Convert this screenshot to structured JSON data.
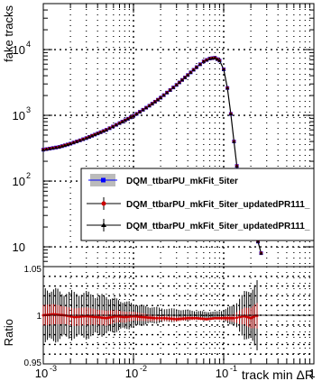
{
  "chart_data": [
    {
      "type": "scatter",
      "panel": "main",
      "xlabel": "",
      "ylabel": "fake tracks",
      "xscale": "log",
      "yscale": "log",
      "xlim": [
        0.001,
        1
      ],
      "ylim": [
        5,
        50000
      ],
      "grid": true,
      "legend_position": "center-right",
      "x_ticks": [
        "10",
        "10",
        "10"
      ],
      "x_tick_exps": [
        "-3",
        "-2",
        "-1"
      ],
      "x_tick_last": "1",
      "y_ticks": [
        "10",
        "10",
        "10",
        "10"
      ],
      "y_tick_exps": [
        "",
        "2",
        "3",
        "4"
      ],
      "series": [
        {
          "name": "DQM_ttbarPU_mkFit_5iter",
          "color": "#0000ff",
          "marker": "square",
          "x": [
            0.001,
            0.0015,
            0.002,
            0.003,
            0.005,
            0.007,
            0.01,
            0.015,
            0.02,
            0.03,
            0.04,
            0.05,
            0.06,
            0.07,
            0.08,
            0.09,
            0.1,
            0.11,
            0.12,
            0.13,
            0.14,
            0.15,
            0.16,
            0.18,
            0.2,
            0.22,
            0.24,
            0.26
          ],
          "y": [
            300,
            330,
            370,
            450,
            600,
            760,
            980,
            1400,
            1850,
            2900,
            4100,
            5400,
            6600,
            7300,
            7500,
            6800,
            5000,
            2600,
            1050,
            400,
            170,
            85,
            55,
            45,
            30,
            20,
            12,
            8
          ]
        },
        {
          "name": "DQM_ttbarPU_mkFit_5iter_updatedPR111_",
          "color": "#cc0000",
          "marker": "circle",
          "x": [
            0.001,
            0.0015,
            0.002,
            0.003,
            0.005,
            0.007,
            0.01,
            0.015,
            0.02,
            0.03,
            0.04,
            0.05,
            0.06,
            0.07,
            0.08,
            0.09,
            0.1,
            0.11,
            0.12,
            0.13,
            0.14,
            0.15,
            0.16,
            0.18,
            0.2,
            0.22,
            0.24,
            0.26
          ],
          "y": [
            300,
            330,
            370,
            450,
            600,
            760,
            980,
            1400,
            1850,
            2900,
            4100,
            5400,
            6600,
            7300,
            7500,
            6800,
            5000,
            2600,
            1050,
            400,
            170,
            85,
            55,
            45,
            30,
            20,
            12,
            8
          ]
        },
        {
          "name": "DQM_ttbarPU_mkFit_5iter_updatedPR111_",
          "color": "#000000",
          "marker": "triangle",
          "x": [
            0.001,
            0.0015,
            0.002,
            0.003,
            0.005,
            0.007,
            0.01,
            0.015,
            0.02,
            0.03,
            0.04,
            0.05,
            0.06,
            0.07,
            0.08,
            0.09,
            0.1,
            0.11,
            0.12,
            0.13,
            0.14,
            0.15,
            0.16,
            0.18,
            0.2,
            0.22,
            0.24,
            0.26
          ],
          "y": [
            300,
            330,
            370,
            450,
            600,
            760,
            980,
            1400,
            1850,
            2900,
            4100,
            5400,
            6600,
            7300,
            7500,
            6800,
            5000,
            2600,
            1050,
            400,
            170,
            85,
            55,
            45,
            30,
            20,
            12,
            8
          ]
        }
      ]
    },
    {
      "type": "scatter",
      "panel": "ratio",
      "xlabel": "track min ΔR",
      "ylabel": "Ratio",
      "xscale": "log",
      "xlim": [
        0.001,
        1
      ],
      "ylim": [
        0.95,
        1.05
      ],
      "grid": true,
      "y_ticks": [
        "0.95",
        "1",
        "1.05"
      ],
      "series": [
        {
          "name": "DQM_ttbarPU_mkFit_5iter_updatedPR111_",
          "color": "#cc0000",
          "x": [
            0.001,
            0.0013,
            0.0017,
            0.0022,
            0.003,
            0.004,
            0.005,
            0.0065,
            0.008,
            0.01,
            0.013,
            0.017,
            0.022,
            0.03,
            0.04,
            0.05,
            0.065,
            0.08,
            0.1,
            0.13,
            0.15,
            0.17,
            0.2,
            0.22,
            0.25
          ],
          "y": [
            1.0,
            1.001,
            1.0,
            0.998,
            0.999,
            0.998,
            0.997,
            0.999,
            0.998,
            0.999,
            0.998,
            0.997,
            0.997,
            0.996,
            0.997,
            0.997,
            0.996,
            0.997,
            0.997,
            0.997,
            0.998,
            0.999,
            0.997,
            0.999,
            1.0
          ],
          "err": [
            0.03,
            0.03,
            0.026,
            0.026,
            0.026,
            0.022,
            0.022,
            0.018,
            0.016,
            0.013,
            0.011,
            0.009,
            0.008,
            0.007,
            0.006,
            0.005,
            0.004,
            0.004,
            0.006,
            0.012,
            0.02,
            0.025,
            0.03,
            0.035,
            0.04
          ]
        },
        {
          "name": "DQM_ttbarPU_mkFit_5iter_updatedPR111_",
          "color": "#000000",
          "x": [
            0.001,
            0.0013,
            0.0017,
            0.0022,
            0.003,
            0.004,
            0.005,
            0.0065,
            0.008,
            0.01,
            0.013,
            0.017,
            0.022,
            0.03,
            0.04,
            0.05,
            0.065,
            0.08,
            0.1,
            0.13,
            0.15,
            0.17,
            0.2,
            0.22,
            0.25
          ],
          "y": [
            1.0,
            1.0,
            1.0,
            1.0,
            1.0,
            1.0,
            1.0,
            1.0,
            1.0,
            1.0,
            1.0,
            1.0,
            1.0,
            1.0,
            1.0,
            1.0,
            1.0,
            1.0,
            1.0,
            1.0,
            1.0,
            1.0,
            1.0,
            1.0,
            1.0
          ],
          "err": [
            0.03,
            0.03,
            0.026,
            0.026,
            0.026,
            0.022,
            0.022,
            0.018,
            0.016,
            0.013,
            0.011,
            0.009,
            0.008,
            0.007,
            0.006,
            0.005,
            0.004,
            0.004,
            0.006,
            0.012,
            0.02,
            0.025,
            0.03,
            0.035,
            0.04
          ]
        }
      ]
    }
  ]
}
